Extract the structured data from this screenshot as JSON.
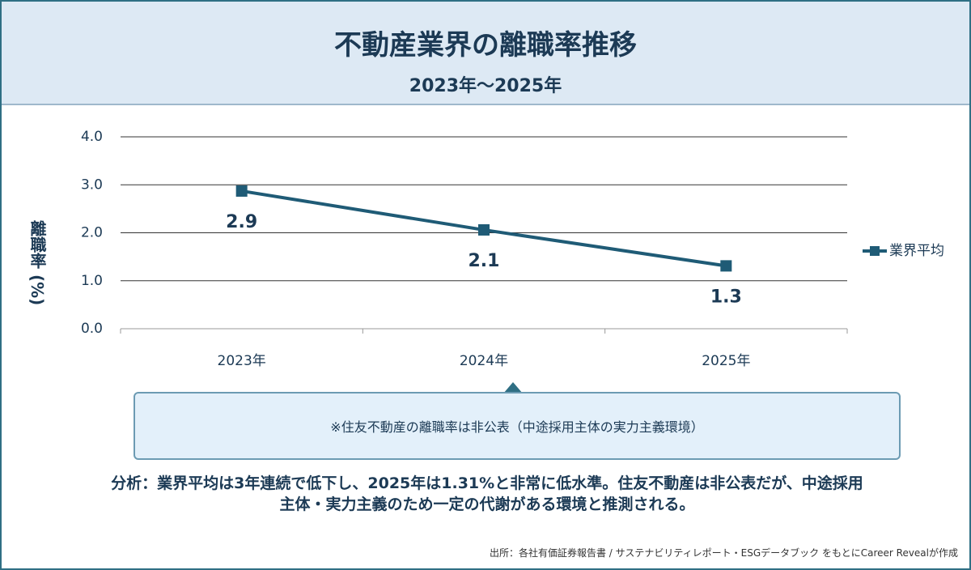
{
  "header": {
    "title": "不動産業界の離職率推移",
    "subtitle": "2023年〜2025年"
  },
  "chart_data": {
    "type": "line",
    "y_label": "離職率 (%)",
    "categories": [
      "2023年",
      "2024年",
      "2025年"
    ],
    "series": [
      {
        "name": "業界平均",
        "color": "#1f5b76",
        "values": [
          2.87,
          2.06,
          1.31
        ],
        "value_labels": [
          "2.9",
          "2.1",
          "1.3"
        ]
      }
    ],
    "ylim": [
      0,
      4
    ],
    "yticks": [
      {
        "value": 0,
        "label": "0.0"
      },
      {
        "value": 1,
        "label": "1.0"
      },
      {
        "value": 2,
        "label": "2.0"
      },
      {
        "value": 3,
        "label": "3.0"
      },
      {
        "value": 4,
        "label": "4.0"
      }
    ],
    "grid": true,
    "legend": "right"
  },
  "note": "※住友不動産の離職率は非公表（中途採用主体の実力主義環境）",
  "analysis": "分析：業界平均は3年連続で低下し、2025年は1.31%と非常に低水準。住友不動産は非公表だが、中途採用主体・実力主義のため一定の代謝がある環境と推測される。",
  "source": "出所：各社有価証券報告書 / サステナビリティレポート・ESGデータブック をもとにCareer Revealが作成"
}
